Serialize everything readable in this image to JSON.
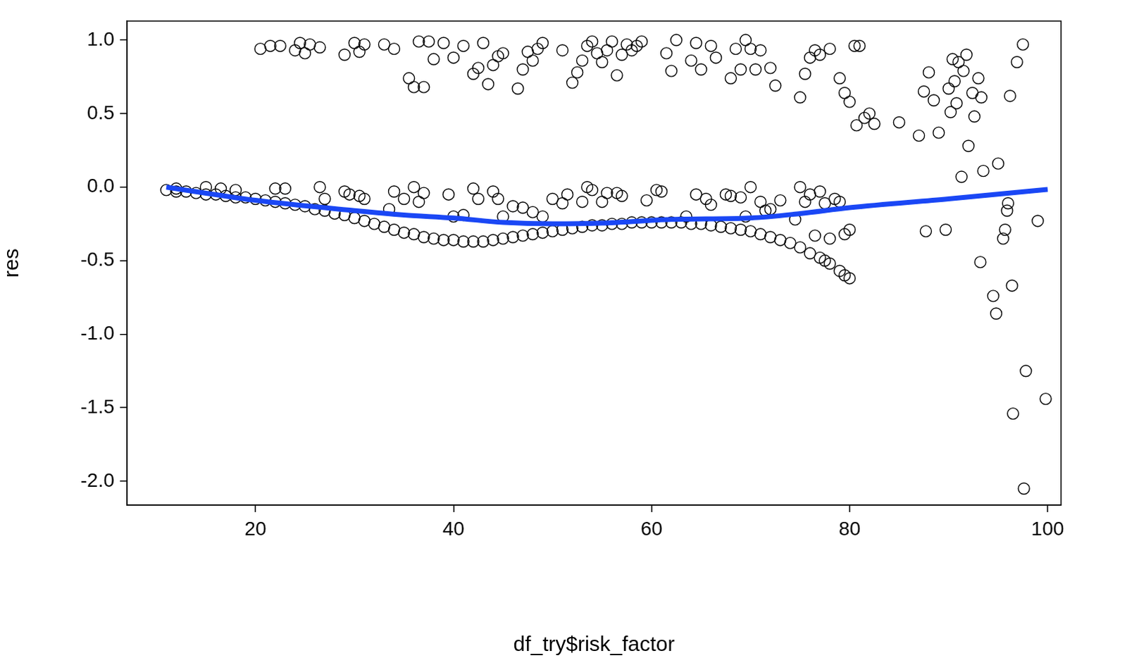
{
  "chart_data": {
    "type": "scatter",
    "xlabel": "df_try$risk_factor",
    "ylabel": "res",
    "xlim": [
      7.03,
      101.35
    ],
    "ylim": [
      -2.162,
      1.129
    ],
    "xticks": [
      20,
      40,
      60,
      80,
      100
    ],
    "yticks": [
      {
        "value": -2,
        "label": "-2.0"
      },
      -1.5,
      {
        "value": -1,
        "label": "-1.0"
      },
      -0.5,
      {
        "value": 0,
        "label": "0.0"
      },
      0.5,
      {
        "value": 1,
        "label": "1.0"
      }
    ],
    "grid": false,
    "series": [
      {
        "type": "scatter",
        "color": "#000000",
        "marker": "circle",
        "x": [
          11,
          12,
          13,
          14,
          15,
          16,
          17,
          18,
          19,
          20,
          21,
          22,
          23,
          24,
          25,
          26,
          27,
          28,
          29,
          30,
          31,
          32,
          33,
          34,
          35,
          36,
          37,
          38,
          39,
          40,
          41,
          42,
          43,
          44,
          45,
          46,
          47,
          48,
          49,
          50,
          51,
          52,
          53,
          54,
          55,
          56,
          57,
          58,
          59,
          60,
          61,
          62,
          63,
          64,
          65,
          66,
          67,
          68,
          69,
          70,
          71,
          72,
          73,
          74,
          75,
          76,
          77,
          77.5,
          78,
          79,
          79.5,
          80,
          12,
          15,
          16.5,
          18,
          22,
          23,
          26.5,
          27,
          29,
          29.5,
          30.5,
          31,
          33.5,
          34,
          35,
          36,
          36.5,
          37,
          39.5,
          40,
          41,
          42,
          42.5,
          44,
          44.5,
          45,
          46,
          47,
          48,
          49,
          50,
          51,
          51.5,
          53,
          53.5,
          54,
          55,
          55.5,
          56.5,
          57,
          59.5,
          60.5,
          61,
          63.5,
          64.5,
          65.5,
          66,
          67.5,
          68,
          69,
          69.5,
          70,
          71,
          71.5,
          72,
          73,
          74.5,
          75,
          75.5,
          76,
          76.5,
          77,
          77.5,
          78,
          78.5,
          79,
          79.5,
          80,
          20.5,
          21.5,
          22.5,
          24,
          24.5,
          25,
          25.5,
          26.5,
          29,
          30,
          30.5,
          31,
          33,
          34,
          35.5,
          36,
          36.5,
          37,
          37.5,
          38,
          39,
          40,
          41,
          42,
          42.5,
          43,
          43.5,
          44,
          44.5,
          45,
          46.5,
          47,
          47.5,
          48,
          48.5,
          49,
          51,
          52,
          52.5,
          53,
          53.5,
          54,
          54.5,
          55,
          55.5,
          56,
          56.5,
          57,
          57.5,
          58,
          58.5,
          59,
          61.5,
          62,
          62.5,
          64,
          64.5,
          65,
          66,
          66.5,
          68,
          68.5,
          69,
          69.5,
          70,
          70.5,
          71,
          72,
          72.5,
          75,
          75.5,
          76,
          76.5,
          77,
          78,
          79,
          79.5,
          80,
          80.5,
          81,
          80.7,
          81.5,
          82,
          82.5,
          85,
          87,
          87.5,
          88,
          88.5,
          89,
          87.7,
          89.7,
          90,
          90.2,
          90.4,
          90.6,
          90.8,
          91,
          91.5,
          91.8,
          92,
          92.4,
          92.6,
          93,
          93.3,
          91.3,
          93.5,
          93.2,
          94.5,
          94.8,
          95,
          95.5,
          95.7,
          95.9,
          96,
          96.2,
          96.4,
          96.5,
          96.9,
          97.5,
          97.6,
          97.8,
          99,
          99.8
        ],
        "values": [
          -0.02,
          -0.03,
          -0.03,
          -0.04,
          -0.05,
          -0.05,
          -0.06,
          -0.07,
          -0.07,
          -0.08,
          -0.09,
          -0.1,
          -0.11,
          -0.12,
          -0.13,
          -0.15,
          -0.16,
          -0.18,
          -0.19,
          -0.21,
          -0.23,
          -0.25,
          -0.27,
          -0.29,
          -0.31,
          -0.32,
          -0.34,
          -0.35,
          -0.36,
          -0.36,
          -0.37,
          -0.37,
          -0.37,
          -0.36,
          -0.35,
          -0.34,
          -0.33,
          -0.32,
          -0.31,
          -0.3,
          -0.29,
          -0.28,
          -0.27,
          -0.26,
          -0.26,
          -0.25,
          -0.25,
          -0.24,
          -0.24,
          -0.24,
          -0.24,
          -0.24,
          -0.24,
          -0.25,
          -0.25,
          -0.26,
          -0.27,
          -0.28,
          -0.29,
          -0.3,
          -0.32,
          -0.34,
          -0.36,
          -0.38,
          -0.41,
          -0.45,
          -0.48,
          -0.5,
          -0.52,
          -0.57,
          -0.6,
          -0.62,
          -0.01,
          0.0,
          -0.01,
          -0.02,
          -0.01,
          -0.01,
          0.0,
          -0.08,
          -0.03,
          -0.05,
          -0.06,
          -0.08,
          -0.15,
          -0.03,
          -0.08,
          0.0,
          -0.1,
          -0.04,
          -0.05,
          -0.2,
          -0.19,
          -0.01,
          -0.08,
          -0.03,
          -0.08,
          -0.2,
          -0.13,
          -0.14,
          -0.17,
          -0.2,
          -0.08,
          -0.11,
          -0.05,
          -0.1,
          0.0,
          -0.02,
          -0.1,
          -0.04,
          -0.04,
          -0.06,
          -0.09,
          -0.02,
          -0.03,
          -0.2,
          -0.05,
          -0.08,
          -0.12,
          -0.05,
          -0.06,
          -0.07,
          -0.2,
          0.0,
          -0.1,
          -0.16,
          -0.15,
          -0.09,
          -0.22,
          0.0,
          -0.1,
          -0.05,
          -0.33,
          -0.03,
          -0.11,
          -0.35,
          -0.08,
          -0.1,
          -0.32,
          -0.29,
          0.94,
          0.96,
          0.96,
          0.93,
          0.98,
          0.91,
          0.97,
          0.95,
          0.9,
          0.98,
          0.92,
          0.97,
          0.97,
          0.94,
          0.74,
          0.68,
          0.99,
          0.68,
          0.99,
          0.87,
          0.98,
          0.88,
          0.96,
          0.77,
          0.81,
          0.98,
          0.7,
          0.83,
          0.89,
          0.91,
          0.67,
          0.8,
          0.92,
          0.86,
          0.94,
          0.98,
          0.93,
          0.71,
          0.78,
          0.86,
          0.96,
          0.99,
          0.91,
          0.85,
          0.93,
          0.99,
          0.76,
          0.9,
          0.97,
          0.93,
          0.96,
          0.99,
          0.91,
          0.79,
          1.0,
          0.86,
          0.98,
          0.8,
          0.96,
          0.88,
          0.74,
          0.94,
          0.8,
          1.0,
          0.94,
          0.8,
          0.93,
          0.81,
          0.69,
          0.61,
          0.77,
          0.88,
          0.93,
          0.9,
          0.94,
          0.74,
          0.64,
          0.58,
          0.96,
          0.96,
          0.42,
          0.47,
          0.5,
          0.43,
          0.44,
          0.35,
          0.65,
          0.78,
          0.59,
          0.37,
          -0.3,
          -0.29,
          0.67,
          0.51,
          0.87,
          0.72,
          0.57,
          0.85,
          0.79,
          0.9,
          0.28,
          0.64,
          0.48,
          0.74,
          0.61,
          0.07,
          0.11,
          -0.51,
          -0.74,
          -0.86,
          0.16,
          -0.35,
          -0.29,
          -0.16,
          -0.11,
          0.62,
          -0.67,
          -1.54,
          0.85,
          0.97,
          -2.05,
          -1.25,
          -0.23,
          -1.44
        ]
      },
      {
        "type": "line",
        "color": "#1a47f5",
        "line_style": "solid",
        "x": [
          11,
          20,
          30,
          35,
          40,
          45,
          50,
          55,
          62,
          70,
          75,
          80,
          90,
          100
        ],
        "values": [
          0.0,
          -0.09,
          -0.16,
          -0.19,
          -0.21,
          -0.24,
          -0.25,
          -0.245,
          -0.22,
          -0.21,
          -0.18,
          -0.14,
          -0.08,
          -0.016
        ]
      }
    ]
  }
}
